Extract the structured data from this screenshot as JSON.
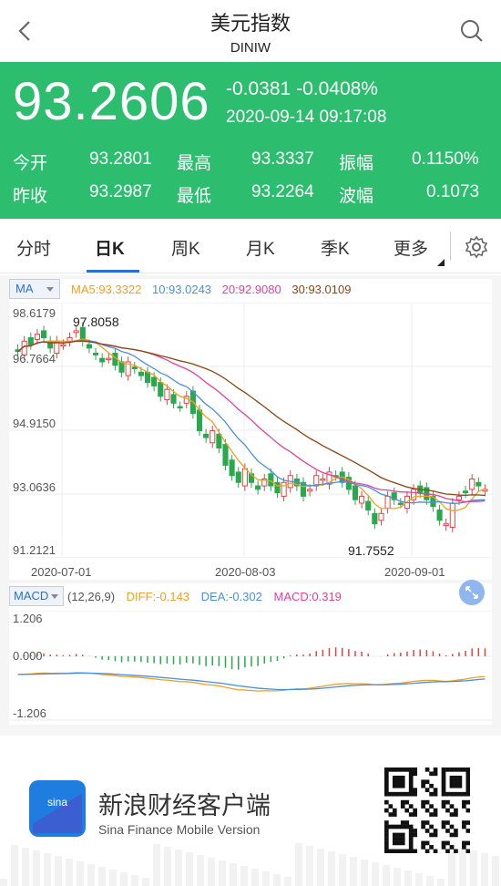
{
  "nav": {
    "title": "美元指数",
    "code": "DINIW"
  },
  "quote": {
    "price": "93.2606",
    "change": "-0.0381",
    "change_pct": "-0.0408%",
    "datetime": "2020-09-14 09:17:08",
    "open_label": "今开",
    "open": "93.2801",
    "high_label": "最高",
    "high": "93.3337",
    "amp_label": "振幅",
    "amp": "0.1150%",
    "prev_label": "昨收",
    "prev": "93.2987",
    "low_label": "最低",
    "low": "93.2264",
    "wave_label": "波幅",
    "wave": "0.1073"
  },
  "tabs": [
    {
      "label": "分时"
    },
    {
      "label": "日K"
    },
    {
      "label": "周K"
    },
    {
      "label": "月K"
    },
    {
      "label": "季K"
    },
    {
      "label": "更多"
    }
  ],
  "colors": {
    "green": "#2dbd6e",
    "up": "#e04545",
    "down": "#2aa84f",
    "ma5": "#f0a020",
    "ma10": "#4a90d9",
    "ma20": "#e040a0",
    "ma30": "#8b4513",
    "dif": "#f0a020",
    "dea": "#4a90d9"
  },
  "chart": {
    "ma_selector": "MA",
    "ma5": "MA5:93.3322",
    "ma10": "10:93.0243",
    "ma20": "20:92.9080",
    "ma30": "30:93.0109",
    "y_labels": [
      "98.6179",
      "96.7664",
      "94.9150",
      "93.0636",
      "91.2121"
    ],
    "max_label": "97.8058",
    "min_label": "91.7552",
    "x_labels": [
      "2020-07-01",
      "2020-08-03",
      "2020-09-01"
    ],
    "macd_selector": "MACD",
    "macd_params": "(12,26,9)",
    "dif": "DIFF:-0.143",
    "dea": "DEA:-0.302",
    "macd": "MACD:0.319",
    "macd_y": [
      "1.206",
      "0.000",
      "-1.206"
    ]
  },
  "chart_data": {
    "type": "candlestick",
    "ylim": [
      91.2121,
      98.6179
    ],
    "x_ticks": [
      "2020-07-01",
      "2020-08-03",
      "2020-09-01"
    ],
    "closes": [
      97.2,
      97.5,
      97.4,
      97.7,
      97.6,
      97.3,
      97.5,
      97.4,
      97.6,
      97.8,
      97.5,
      97.3,
      97.1,
      96.9,
      97.0,
      96.8,
      96.6,
      96.9,
      96.7,
      96.5,
      96.3,
      96.2,
      95.9,
      96.1,
      95.7,
      95.6,
      95.9,
      95.4,
      94.9,
      94.7,
      94.9,
      94.4,
      93.9,
      93.6,
      93.4,
      93.8,
      93.4,
      93.2,
      93.5,
      93.3,
      93.1,
      93.4,
      93.6,
      93.3,
      93.0,
      93.2,
      93.6,
      93.5,
      93.7,
      93.6,
      93.4,
      93.2,
      92.9,
      93.0,
      92.6,
      92.2,
      92.5,
      93.0,
      92.9,
      92.8,
      93.0,
      93.2,
      93.1,
      92.9,
      92.7,
      92.3,
      92.2,
      92.8,
      93.0,
      93.1,
      93.5,
      93.3,
      93.2
    ]
  },
  "footer": {
    "brand_cn": "新浪财经客户端",
    "brand_en": "Sina Finance Mobile Version",
    "logo_text": "sina"
  }
}
